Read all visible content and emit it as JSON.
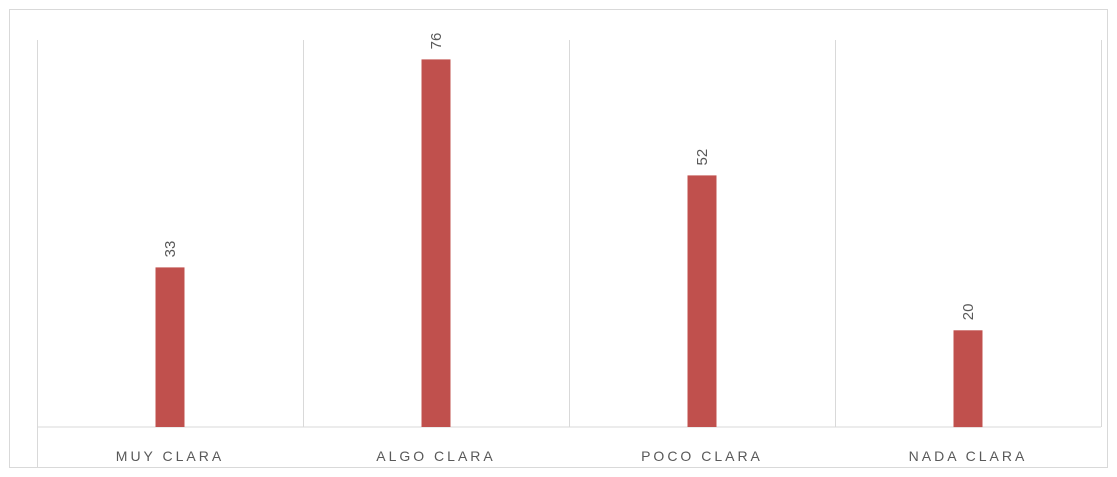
{
  "chart_data": {
    "type": "bar",
    "categories": [
      "MUY CLARA",
      "ALGO CLARA",
      "POCO CLARA",
      "NADA CLARA"
    ],
    "values": [
      33,
      76,
      52,
      20
    ],
    "title": "",
    "xlabel": "",
    "ylabel": "",
    "ylim": [
      0,
      80
    ],
    "grid": "vertical category separators",
    "data_labels": "rotated vertical above bars",
    "bar_color": "#c0504d",
    "gridline_color": "#d9d9d9",
    "label_color": "#595959"
  }
}
